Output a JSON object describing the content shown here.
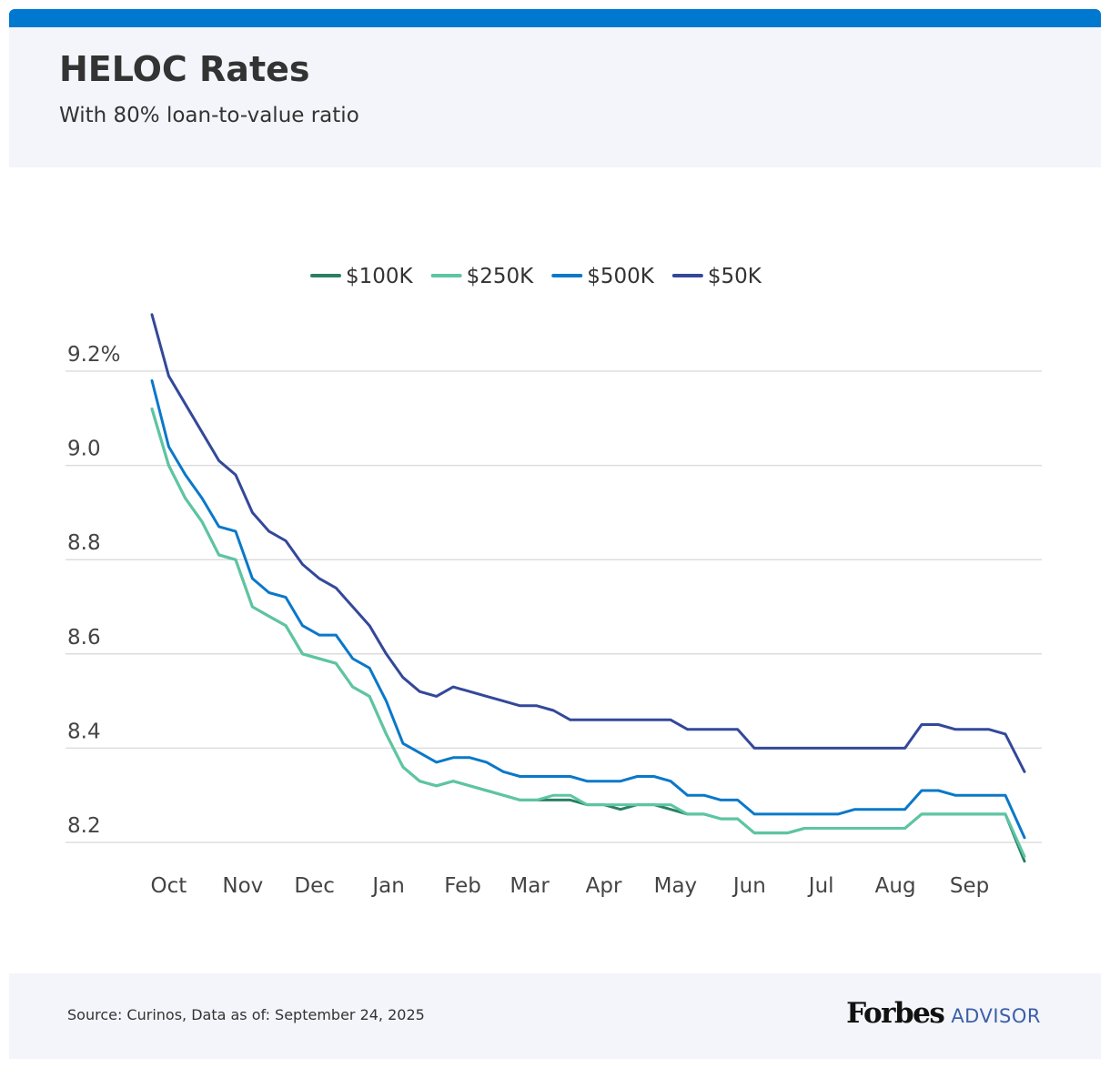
{
  "header": {
    "title": "HELOC Rates",
    "subtitle": "With 80% loan-to-value ratio"
  },
  "footer": {
    "source": "Source: Curinos, Data as of: September 24, 2025",
    "brand_main": "Forbes",
    "brand_sub": "ADVISOR"
  },
  "colors": {
    "accent": "#0078d0",
    "$100K": "#2a7f62",
    "$250K": "#5cc6a2",
    "$500K": "#0a78c9",
    "$50K": "#34489a"
  },
  "chart_data": {
    "type": "line",
    "title": "HELOC Rates",
    "subtitle": "With 80% loan-to-value ratio",
    "xlabel": "",
    "ylabel": "",
    "x": [
      "2024-09-24",
      "2024-10-01",
      "2024-10-08",
      "2024-10-15",
      "2024-10-22",
      "2024-10-29",
      "2024-11-05",
      "2024-11-12",
      "2024-11-19",
      "2024-11-26",
      "2024-12-03",
      "2024-12-10",
      "2024-12-17",
      "2024-12-24",
      "2024-12-31",
      "2025-01-07",
      "2025-01-14",
      "2025-01-21",
      "2025-01-28",
      "2025-02-04",
      "2025-02-11",
      "2025-02-18",
      "2025-02-25",
      "2025-03-04",
      "2025-03-11",
      "2025-03-18",
      "2025-03-25",
      "2025-04-01",
      "2025-04-08",
      "2025-04-15",
      "2025-04-22",
      "2025-04-29",
      "2025-05-06",
      "2025-05-13",
      "2025-05-20",
      "2025-05-27",
      "2025-06-03",
      "2025-06-10",
      "2025-06-17",
      "2025-06-24",
      "2025-07-01",
      "2025-07-08",
      "2025-07-15",
      "2025-07-22",
      "2025-07-29",
      "2025-08-05",
      "2025-08-12",
      "2025-08-19",
      "2025-08-26",
      "2025-09-02",
      "2025-09-09",
      "2025-09-16",
      "2025-09-24"
    ],
    "x_ticks": [
      "Oct",
      "Nov",
      "Dec",
      "Jan",
      "Feb",
      "Mar",
      "Apr",
      "May",
      "Jun",
      "Jul",
      "Aug",
      "Sep"
    ],
    "x_tick_dates": [
      "2024-10-01",
      "2024-11-01",
      "2024-12-01",
      "2025-01-01",
      "2025-02-01",
      "2025-03-01",
      "2025-04-01",
      "2025-05-01",
      "2025-06-01",
      "2025-07-01",
      "2025-08-01",
      "2025-09-01"
    ],
    "y_ticks": [
      "9.2%",
      "9.0",
      "8.8",
      "8.6",
      "8.4",
      "8.2"
    ],
    "y_tick_values": [
      9.2,
      9.0,
      8.8,
      8.6,
      8.4,
      8.2
    ],
    "ylim": [
      8.15,
      9.4
    ],
    "grid": true,
    "legend": "top-center",
    "series": [
      {
        "name": "$100K",
        "color": "#2a7f62",
        "values": [
          9.12,
          9.0,
          8.93,
          8.88,
          8.81,
          8.8,
          8.7,
          8.68,
          8.66,
          8.6,
          8.59,
          8.58,
          8.53,
          8.51,
          8.43,
          8.36,
          8.33,
          8.32,
          8.33,
          8.32,
          8.31,
          8.3,
          8.29,
          8.29,
          8.29,
          8.29,
          8.28,
          8.28,
          8.27,
          8.28,
          8.28,
          8.27,
          8.26,
          8.26,
          8.25,
          8.25,
          8.22,
          8.22,
          8.22,
          8.23,
          8.23,
          8.23,
          8.23,
          8.23,
          8.23,
          8.23,
          8.26,
          8.26,
          8.26,
          8.26,
          8.26,
          8.26,
          8.16
        ]
      },
      {
        "name": "$250K",
        "color": "#5cc6a2",
        "values": [
          9.12,
          9.0,
          8.93,
          8.88,
          8.81,
          8.8,
          8.7,
          8.68,
          8.66,
          8.6,
          8.59,
          8.58,
          8.53,
          8.51,
          8.43,
          8.36,
          8.33,
          8.32,
          8.33,
          8.32,
          8.31,
          8.3,
          8.29,
          8.29,
          8.3,
          8.3,
          8.28,
          8.28,
          8.28,
          8.28,
          8.28,
          8.28,
          8.26,
          8.26,
          8.25,
          8.25,
          8.22,
          8.22,
          8.22,
          8.23,
          8.23,
          8.23,
          8.23,
          8.23,
          8.23,
          8.23,
          8.26,
          8.26,
          8.26,
          8.26,
          8.26,
          8.26,
          8.17
        ]
      },
      {
        "name": "$500K",
        "color": "#0a78c9",
        "values": [
          9.18,
          9.04,
          8.98,
          8.93,
          8.87,
          8.86,
          8.76,
          8.73,
          8.72,
          8.66,
          8.64,
          8.64,
          8.59,
          8.57,
          8.5,
          8.41,
          8.39,
          8.37,
          8.38,
          8.38,
          8.37,
          8.35,
          8.34,
          8.34,
          8.34,
          8.34,
          8.33,
          8.33,
          8.33,
          8.34,
          8.34,
          8.33,
          8.3,
          8.3,
          8.29,
          8.29,
          8.26,
          8.26,
          8.26,
          8.26,
          8.26,
          8.26,
          8.27,
          8.27,
          8.27,
          8.27,
          8.31,
          8.31,
          8.3,
          8.3,
          8.3,
          8.3,
          8.21
        ]
      },
      {
        "name": "$50K",
        "color": "#34489a",
        "values": [
          9.32,
          9.19,
          9.13,
          9.07,
          9.01,
          8.98,
          8.9,
          8.86,
          8.84,
          8.79,
          8.76,
          8.74,
          8.7,
          8.66,
          8.6,
          8.55,
          8.52,
          8.51,
          8.53,
          8.52,
          8.51,
          8.5,
          8.49,
          8.49,
          8.48,
          8.46,
          8.46,
          8.46,
          8.46,
          8.46,
          8.46,
          8.46,
          8.44,
          8.44,
          8.44,
          8.44,
          8.4,
          8.4,
          8.4,
          8.4,
          8.4,
          8.4,
          8.4,
          8.4,
          8.4,
          8.4,
          8.45,
          8.45,
          8.44,
          8.44,
          8.44,
          8.43,
          8.35
        ]
      }
    ]
  }
}
